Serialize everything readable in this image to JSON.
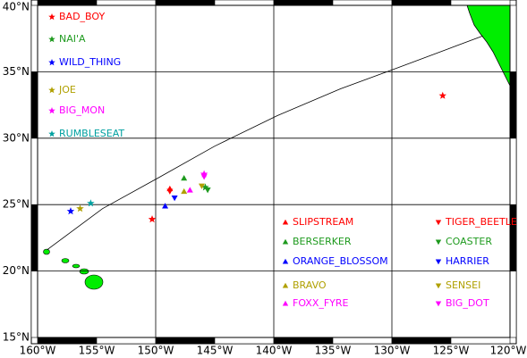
{
  "chart_data": {
    "type": "scatter",
    "xlim": [
      -160,
      -120
    ],
    "ylim": [
      15,
      40
    ],
    "xticks": [
      {
        "value": -160,
        "label": "160°W"
      },
      {
        "value": -155,
        "label": "155°W"
      },
      {
        "value": -150,
        "label": "150°W"
      },
      {
        "value": -145,
        "label": "145°W"
      },
      {
        "value": -140,
        "label": "140°W"
      },
      {
        "value": -135,
        "label": "135°W"
      },
      {
        "value": -130,
        "label": "130°W"
      },
      {
        "value": -125,
        "label": "125°W"
      },
      {
        "value": -120,
        "label": "120°W"
      }
    ],
    "yticks": [
      {
        "value": 15,
        "label": "15°N"
      },
      {
        "value": 20,
        "label": "20°N"
      },
      {
        "value": 25,
        "label": "25°N"
      },
      {
        "value": 30,
        "label": "30°N"
      },
      {
        "value": 35,
        "label": "35°N"
      },
      {
        "value": 40,
        "label": "40°N"
      }
    ],
    "grid": true,
    "route": {
      "x": [
        -159.2,
        -154.5,
        -149.8,
        -145.0,
        -139.7,
        -134.4,
        -129.8,
        -125.3,
        -122.3
      ],
      "y": [
        21.6,
        24.7,
        27.0,
        29.4,
        31.7,
        33.7,
        35.2,
        36.7,
        37.7
      ]
    },
    "series": [
      {
        "name": "BAD_BOY",
        "color": "#ff0000",
        "marker": "star",
        "x": [
          -125.7,
          -150.3
        ],
        "y": [
          33.2,
          23.9
        ]
      },
      {
        "name": "NAI'A",
        "color": "#1e9a1e",
        "marker": "star",
        "x": [
          -145.8
        ],
        "y": [
          26.3
        ]
      },
      {
        "name": "WILD_THING",
        "color": "#0000ff",
        "marker": "star",
        "x": [
          -157.2
        ],
        "y": [
          24.5
        ]
      },
      {
        "name": "JOE",
        "color": "#b0a000",
        "marker": "star",
        "x": [
          -156.4
        ],
        "y": [
          24.7
        ]
      },
      {
        "name": "BIG_MON",
        "color": "#ff00ff",
        "marker": "star",
        "x": [
          -145.9
        ],
        "y": [
          27.3
        ]
      },
      {
        "name": "RUMBLESEAT",
        "color": "#00a0a0",
        "marker": "star",
        "x": [
          -155.5
        ],
        "y": [
          25.1
        ]
      },
      {
        "name": "SLIPSTREAM",
        "color": "#ff0000",
        "marker": "up",
        "x": [
          -148.8
        ],
        "y": [
          26.2
        ]
      },
      {
        "name": "BERSERKER",
        "color": "#1e9a1e",
        "marker": "up",
        "x": [
          -147.6
        ],
        "y": [
          27.0
        ]
      },
      {
        "name": "ORANGE_BLOSSOM",
        "color": "#0000ff",
        "marker": "up",
        "x": [
          -149.2
        ],
        "y": [
          24.9
        ]
      },
      {
        "name": "BRAVO",
        "color": "#b0a000",
        "marker": "up",
        "x": [
          -147.6
        ],
        "y": [
          26.0
        ]
      },
      {
        "name": "FOXX_FYRE",
        "color": "#ff00ff",
        "marker": "up",
        "x": [
          -147.1
        ],
        "y": [
          26.1
        ]
      },
      {
        "name": "TIGER_BEETLE",
        "color": "#ff0000",
        "marker": "down",
        "x": [
          -148.8
        ],
        "y": [
          26.0
        ]
      },
      {
        "name": "COASTER",
        "color": "#1e9a1e",
        "marker": "down",
        "x": [
          -145.6
        ],
        "y": [
          26.1
        ]
      },
      {
        "name": "HARRIER",
        "color": "#0000ff",
        "marker": "down",
        "x": [
          -148.4
        ],
        "y": [
          25.5
        ]
      },
      {
        "name": "SENSEI",
        "color": "#b0a000",
        "marker": "down",
        "x": [
          -146.1
        ],
        "y": [
          26.4
        ]
      },
      {
        "name": "BIG_DOT",
        "color": "#ff00ff",
        "marker": "down",
        "x": [
          -145.9
        ],
        "y": [
          27.1
        ]
      }
    ]
  }
}
